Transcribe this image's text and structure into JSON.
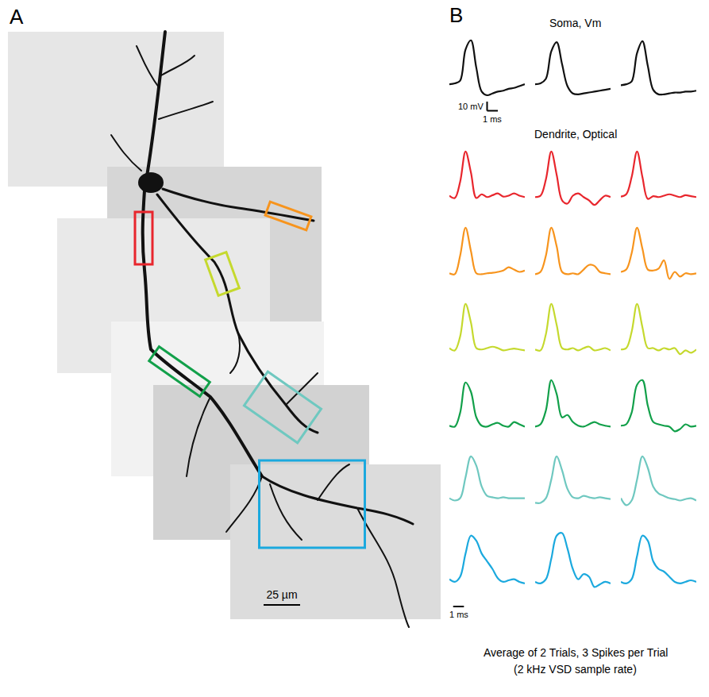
{
  "panel_a": {
    "letter": "A",
    "scale_bar": {
      "value": 25,
      "label": "25 µm"
    }
  },
  "chart_data": {
    "type": "line",
    "letter": "B",
    "tick_labels": false,
    "line_style": "solid",
    "x": [
      0,
      0.5,
      1,
      1.5,
      2,
      2.5,
      3,
      3.5,
      4,
      4.5,
      5,
      5.5,
      6,
      6.5,
      7
    ],
    "xlim": [
      0,
      7
    ],
    "groups": [
      {
        "label": "Soma, Vm",
        "scale_bar": {
          "x": 1,
          "x_label": "1 ms",
          "y": 10,
          "y_label": "10 mV"
        },
        "rows": [
          {
            "color": "#111111",
            "ylim": [
              -36,
              55
            ],
            "series": [
              [
                2,
                3,
                6,
                40,
                50,
                20,
                -6,
                -10,
                -8,
                -6,
                -5,
                -3,
                -2,
                0,
                2
              ],
              [
                2,
                3,
                8,
                38,
                48,
                24,
                0,
                -8,
                -9,
                -8,
                -7,
                -6,
                -5,
                -4,
                -3
              ],
              [
                1,
                2,
                5,
                36,
                49,
                22,
                -4,
                -9,
                -9,
                -8,
                -7,
                -7,
                -6,
                -6,
                -5
              ]
            ]
          }
        ]
      },
      {
        "label": "Dendrite, Optical",
        "scale_bar": {
          "x": 1,
          "x_label": "1 ms"
        },
        "rows": [
          {
            "color": "#e8262d",
            "ylim": [
              -0.3,
              1.1
            ],
            "series": [
              [
                0.05,
                0.0,
                0.35,
                1.0,
                0.55,
                0.0,
                0.08,
                0.02,
                0.06,
                0.1,
                0.03,
                0.05,
                0.1,
                0.05,
                0.02
              ],
              [
                0.02,
                0.05,
                0.4,
                1.0,
                0.5,
                -0.05,
                -0.12,
                0.05,
                0.1,
                0.02,
                -0.05,
                -0.15,
                -0.05,
                0.05,
                0.02
              ],
              [
                0.03,
                0.08,
                0.45,
                1.0,
                0.45,
                -0.02,
                0.04,
                0.02,
                0.05,
                0.08,
                0.05,
                0.02,
                0.06,
                0.04,
                0.02
              ]
            ]
          },
          {
            "color": "#f7941d",
            "ylim": [
              -0.3,
              1.1
            ],
            "series": [
              [
                0.02,
                0.0,
                0.4,
                1.0,
                0.5,
                0.02,
                0.0,
                0.02,
                0.03,
                0.05,
                0.08,
                0.15,
                0.1,
                0.05,
                0.08
              ],
              [
                0.0,
                0.05,
                0.4,
                1.0,
                0.6,
                0.05,
                0.0,
                0.02,
                0.0,
                0.1,
                0.2,
                0.18,
                0.05,
                0.02,
                0.0
              ],
              [
                0.05,
                0.1,
                0.45,
                1.0,
                0.55,
                0.1,
                0.08,
                0.12,
                0.3,
                -0.1,
                0.05,
                -0.05,
                0.02,
                0.0,
                0.02
              ]
            ]
          },
          {
            "color": "#c5d92e",
            "ylim": [
              -0.3,
              1.1
            ],
            "series": [
              [
                0.05,
                0.0,
                0.3,
                1.0,
                0.6,
                0.05,
                0.02,
                0.05,
                0.08,
                0.05,
                0.0,
                0.02,
                0.04,
                0.02,
                0.0
              ],
              [
                0.02,
                0.0,
                0.35,
                1.0,
                0.55,
                0.05,
                0.02,
                0.05,
                0.0,
                0.05,
                0.08,
                0.0,
                0.02,
                0.05,
                0.0
              ],
              [
                0.02,
                0.05,
                0.4,
                1.0,
                0.5,
                0.05,
                0.05,
                0.0,
                0.05,
                0.02,
                0.05,
                -0.08,
                0.0,
                -0.05,
                0.02
              ]
            ]
          },
          {
            "color": "#12a04a",
            "ylim": [
              -0.3,
              1.1
            ],
            "series": [
              [
                0.02,
                0.0,
                0.3,
                0.95,
                0.75,
                0.2,
                0.02,
                0.0,
                0.05,
                0.08,
                0.02,
                0.0,
                0.1,
                0.05,
                0.0
              ],
              [
                0.0,
                0.05,
                0.35,
                1.0,
                0.7,
                0.2,
                0.25,
                0.1,
                0.02,
                0.0,
                0.05,
                0.1,
                0.05,
                0.02,
                0.0
              ],
              [
                0.02,
                0.05,
                0.3,
                0.9,
                1.0,
                0.45,
                0.1,
                0.05,
                0.02,
                0.0,
                -0.1,
                -0.05,
                0.05,
                0.0,
                0.02
              ]
            ]
          },
          {
            "color": "#6fc8c0",
            "ylim": [
              -0.3,
              1.1
            ],
            "series": [
              [
                0.1,
                0.05,
                0.1,
                0.55,
                1.0,
                0.8,
                0.35,
                0.15,
                0.12,
                0.1,
                0.12,
                0.1,
                0.1,
                0.1,
                0.1
              ],
              [
                0.0,
                0.0,
                0.1,
                0.5,
                1.0,
                0.7,
                0.3,
                0.12,
                0.1,
                0.15,
                0.12,
                0.1,
                0.12,
                0.1,
                0.08
              ],
              [
                0.1,
                -0.05,
                0.05,
                0.5,
                1.0,
                0.75,
                0.35,
                0.2,
                0.15,
                0.1,
                0.08,
                0.05,
                0.08,
                0.1,
                0.05
              ]
            ]
          },
          {
            "color": "#1ba9de",
            "ylim": [
              -0.6,
              1.1
            ],
            "series": [
              [
                0.1,
                0.05,
                0.15,
                0.6,
                0.95,
                0.85,
                0.6,
                0.45,
                0.3,
                0.12,
                0.05,
                0.08,
                0.1,
                0.05,
                0.02
              ],
              [
                0.05,
                0.02,
                0.1,
                0.5,
                0.95,
                1.0,
                0.7,
                0.3,
                0.1,
                0.2,
                0.15,
                -0.05,
                0.0,
                0.05,
                0.02
              ],
              [
                0.05,
                0.02,
                0.1,
                0.55,
                0.95,
                0.85,
                0.45,
                0.3,
                0.25,
                0.15,
                0.05,
                0.02,
                0.05,
                0.08,
                0.05
              ]
            ]
          }
        ]
      }
    ],
    "footer": [
      "Average of 2 Trials, 3 Spikes per Trial",
      "(2 kHz VSD sample rate)"
    ]
  }
}
